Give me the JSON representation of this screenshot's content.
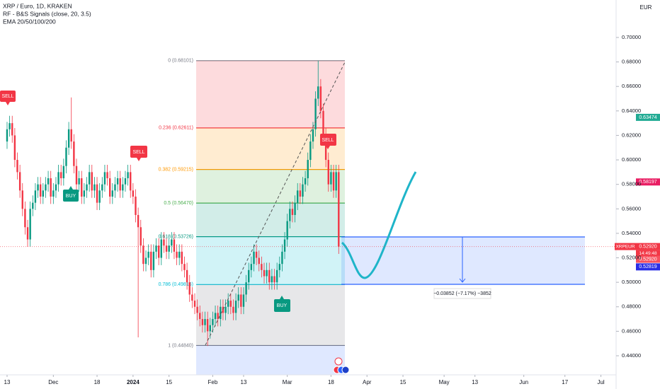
{
  "chart_data": {
    "type": "candlestick",
    "title": "XRP / Euro, 1D, KRAKEN",
    "subtitle": [
      "RF - B&S Signals (close, 20, 3.5)",
      "EMA 20/50/100/200"
    ],
    "currency": "EUR",
    "up_color": "#089981",
    "down_color": "#f23645",
    "open": [
      0.615,
      0.625,
      0.63,
      0.62,
      0.6,
      0.59,
      0.575,
      0.56,
      0.545,
      0.535,
      0.56,
      0.565,
      0.575,
      0.58,
      0.57,
      0.575,
      0.58,
      0.585,
      0.57,
      0.575,
      0.58,
      0.59,
      0.585,
      0.595,
      0.61,
      0.625,
      0.615,
      0.595,
      0.58,
      0.585,
      0.57,
      0.575,
      0.58,
      0.59,
      0.575,
      0.58,
      0.565,
      0.575,
      0.58,
      0.59,
      0.585,
      0.57,
      0.575,
      0.58,
      0.585,
      0.575,
      0.58,
      0.585,
      0.59,
      0.575,
      0.57,
      0.555,
      0.545,
      0.53,
      0.515,
      0.52,
      0.525,
      0.51,
      0.525,
      0.53,
      0.52,
      0.535,
      0.53,
      0.525,
      0.53,
      0.535,
      0.525,
      0.52,
      0.525,
      0.515,
      0.51,
      0.5,
      0.49,
      0.485,
      0.48,
      0.475,
      0.47,
      0.465,
      0.47,
      0.46,
      0.465,
      0.47,
      0.475,
      0.47,
      0.48,
      0.475,
      0.48,
      0.485,
      0.48,
      0.475,
      0.485,
      0.49,
      0.48,
      0.49,
      0.5,
      0.51,
      0.515,
      0.525,
      0.52,
      0.515,
      0.51,
      0.505,
      0.51,
      0.5,
      0.505,
      0.5,
      0.51,
      0.515,
      0.525,
      0.535,
      0.55,
      0.56,
      0.555,
      0.565,
      0.575,
      0.57,
      0.58,
      0.585,
      0.6,
      0.615,
      0.625,
      0.65,
      0.66,
      0.64,
      0.62,
      0.6,
      0.58,
      0.59,
      0.575,
      0.59
    ],
    "high": [
      0.631,
      0.636,
      0.636,
      0.626,
      0.606,
      0.596,
      0.581,
      0.566,
      0.551,
      0.566,
      0.571,
      0.581,
      0.586,
      0.586,
      0.581,
      0.586,
      0.591,
      0.591,
      0.581,
      0.586,
      0.596,
      0.596,
      0.601,
      0.616,
      0.631,
      0.651,
      0.621,
      0.601,
      0.591,
      0.591,
      0.581,
      0.586,
      0.596,
      0.596,
      0.586,
      0.586,
      0.581,
      0.586,
      0.596,
      0.596,
      0.591,
      0.581,
      0.586,
      0.591,
      0.591,
      0.586,
      0.591,
      0.596,
      0.596,
      0.581,
      0.576,
      0.561,
      0.551,
      0.536,
      0.526,
      0.531,
      0.531,
      0.531,
      0.536,
      0.536,
      0.541,
      0.541,
      0.536,
      0.536,
      0.541,
      0.541,
      0.531,
      0.531,
      0.531,
      0.521,
      0.516,
      0.506,
      0.496,
      0.491,
      0.486,
      0.481,
      0.476,
      0.476,
      0.476,
      0.471,
      0.476,
      0.481,
      0.481,
      0.486,
      0.486,
      0.486,
      0.491,
      0.491,
      0.486,
      0.491,
      0.496,
      0.496,
      0.496,
      0.506,
      0.516,
      0.521,
      0.531,
      0.531,
      0.526,
      0.521,
      0.516,
      0.516,
      0.516,
      0.511,
      0.511,
      0.516,
      0.521,
      0.531,
      0.541,
      0.556,
      0.566,
      0.566,
      0.571,
      0.581,
      0.581,
      0.586,
      0.591,
      0.606,
      0.621,
      0.631,
      0.656,
      0.681,
      0.666,
      0.646,
      0.626,
      0.606,
      0.596,
      0.596,
      0.596,
      0.596
    ],
    "low": [
      0.609,
      0.619,
      0.614,
      0.594,
      0.584,
      0.569,
      0.554,
      0.539,
      0.529,
      0.529,
      0.554,
      0.559,
      0.569,
      0.564,
      0.564,
      0.569,
      0.574,
      0.564,
      0.564,
      0.569,
      0.574,
      0.579,
      0.579,
      0.589,
      0.604,
      0.609,
      0.589,
      0.574,
      0.574,
      0.564,
      0.564,
      0.569,
      0.574,
      0.569,
      0.569,
      0.559,
      0.559,
      0.569,
      0.574,
      0.579,
      0.564,
      0.564,
      0.569,
      0.574,
      0.569,
      0.569,
      0.574,
      0.579,
      0.569,
      0.564,
      0.549,
      0.455,
      0.524,
      0.509,
      0.509,
      0.514,
      0.504,
      0.504,
      0.519,
      0.514,
      0.514,
      0.524,
      0.519,
      0.519,
      0.524,
      0.519,
      0.514,
      0.514,
      0.509,
      0.504,
      0.494,
      0.484,
      0.479,
      0.474,
      0.469,
      0.464,
      0.459,
      0.459,
      0.448,
      0.454,
      0.459,
      0.464,
      0.464,
      0.464,
      0.469,
      0.469,
      0.474,
      0.474,
      0.469,
      0.469,
      0.479,
      0.474,
      0.474,
      0.484,
      0.494,
      0.504,
      0.509,
      0.514,
      0.509,
      0.504,
      0.499,
      0.499,
      0.494,
      0.494,
      0.494,
      0.494,
      0.504,
      0.509,
      0.519,
      0.529,
      0.544,
      0.549,
      0.549,
      0.559,
      0.564,
      0.564,
      0.574,
      0.579,
      0.594,
      0.609,
      0.619,
      0.644,
      0.634,
      0.614,
      0.594,
      0.574,
      0.574,
      0.569,
      0.569,
      0.5232
    ],
    "close": [
      0.625,
      0.63,
      0.62,
      0.6,
      0.59,
      0.575,
      0.56,
      0.545,
      0.535,
      0.56,
      0.565,
      0.575,
      0.58,
      0.57,
      0.575,
      0.58,
      0.585,
      0.57,
      0.575,
      0.58,
      0.59,
      0.585,
      0.595,
      0.61,
      0.625,
      0.615,
      0.595,
      0.58,
      0.585,
      0.57,
      0.575,
      0.58,
      0.59,
      0.575,
      0.58,
      0.565,
      0.575,
      0.58,
      0.59,
      0.585,
      0.57,
      0.575,
      0.58,
      0.585,
      0.575,
      0.58,
      0.585,
      0.59,
      0.575,
      0.57,
      0.555,
      0.545,
      0.53,
      0.515,
      0.52,
      0.525,
      0.51,
      0.525,
      0.53,
      0.52,
      0.535,
      0.53,
      0.525,
      0.53,
      0.535,
      0.525,
      0.52,
      0.525,
      0.515,
      0.51,
      0.5,
      0.49,
      0.485,
      0.48,
      0.475,
      0.47,
      0.465,
      0.47,
      0.46,
      0.465,
      0.47,
      0.475,
      0.47,
      0.48,
      0.475,
      0.48,
      0.485,
      0.48,
      0.475,
      0.485,
      0.49,
      0.48,
      0.49,
      0.5,
      0.51,
      0.515,
      0.525,
      0.52,
      0.515,
      0.51,
      0.505,
      0.51,
      0.5,
      0.505,
      0.5,
      0.51,
      0.515,
      0.525,
      0.535,
      0.55,
      0.56,
      0.555,
      0.565,
      0.575,
      0.57,
      0.58,
      0.585,
      0.6,
      0.615,
      0.625,
      0.65,
      0.66,
      0.64,
      0.62,
      0.6,
      0.58,
      0.59,
      0.575,
      0.59,
      0.5292
    ],
    "xlim": [
      -2.75,
      236.9
    ],
    "xticks": [
      {
        "value": 0,
        "label": "13"
      },
      {
        "value": 18,
        "label": "Dec"
      },
      {
        "value": 35,
        "label": "18"
      },
      {
        "value": 49,
        "label": "2024"
      },
      {
        "value": 63,
        "label": "15"
      },
      {
        "value": 80,
        "label": "Feb"
      },
      {
        "value": 92,
        "label": "13"
      },
      {
        "value": 109,
        "label": "Mar"
      },
      {
        "value": 126,
        "label": "18"
      },
      {
        "value": 140,
        "label": "Apr"
      },
      {
        "value": 154,
        "label": "15"
      },
      {
        "value": 170,
        "label": "May"
      },
      {
        "value": 182,
        "label": "13"
      },
      {
        "value": 201,
        "label": "Jun"
      },
      {
        "value": 217,
        "label": "17"
      },
      {
        "value": 231,
        "label": "Jul"
      }
    ],
    "ylim": [
      0.4244,
      0.7306
    ],
    "yticks": [
      {
        "value": 0.44,
        "label": "0.44000"
      },
      {
        "value": 0.46,
        "label": "0.46000"
      },
      {
        "value": 0.48,
        "label": "0.48000"
      },
      {
        "value": 0.5,
        "label": "0.50000"
      },
      {
        "value": 0.52,
        "label": "0.52000"
      },
      {
        "value": 0.54,
        "label": "0.54000"
      },
      {
        "value": 0.56,
        "label": "0.56000"
      },
      {
        "value": 0.58,
        "label": "0.58000"
      },
      {
        "value": 0.6,
        "label": "0.60000"
      },
      {
        "value": 0.62,
        "label": "0.62000"
      },
      {
        "value": 0.64,
        "label": "0.64000"
      },
      {
        "value": 0.66,
        "label": "0.66000"
      },
      {
        "value": 0.68,
        "label": "0.68000"
      },
      {
        "value": 0.7,
        "label": "0.70000"
      }
    ],
    "fib_levels": [
      {
        "value": 0.68101,
        "label": "0 (0.68101)",
        "color": "#787b86"
      },
      {
        "value": 0.62611,
        "label": "0.236 (0.62611)",
        "color": "#f23645"
      },
      {
        "value": 0.59215,
        "label": "0.382 (0.59215)",
        "color": "#ff9800"
      },
      {
        "value": 0.5647,
        "label": "0.5 (0.56470)",
        "color": "#4caf50"
      },
      {
        "value": 0.53726,
        "label": "0.618 (0.53726)",
        "color": "#089981"
      },
      {
        "value": 0.49816,
        "label": "0.786 (0.49816)",
        "color": "#00bcd4"
      },
      {
        "value": 0.4484,
        "label": "1 (0.44840)",
        "color": "#787b86"
      }
    ],
    "price_tags": [
      {
        "value": 0.63474,
        "label": "0.63474",
        "color": "#22ab94"
      },
      {
        "value": 0.58197,
        "label": "0.58197",
        "color": "#e91e63"
      },
      {
        "value": 0.5292,
        "label": "0.52920",
        "color": "#f23645",
        "symbol": "XRPEUR",
        "countdown": "14:49:48"
      },
      {
        "value": 0.5292,
        "label": "0.52920",
        "color": "#f7525f"
      },
      {
        "value": 0.52819,
        "label": "0.52819",
        "color": "#2a2ee6"
      }
    ],
    "signals": [
      "SELL",
      "BUY",
      "SELL",
      "SELL",
      "BUY"
    ],
    "measure": "−0.03852 (−7.17%) −3852"
  }
}
